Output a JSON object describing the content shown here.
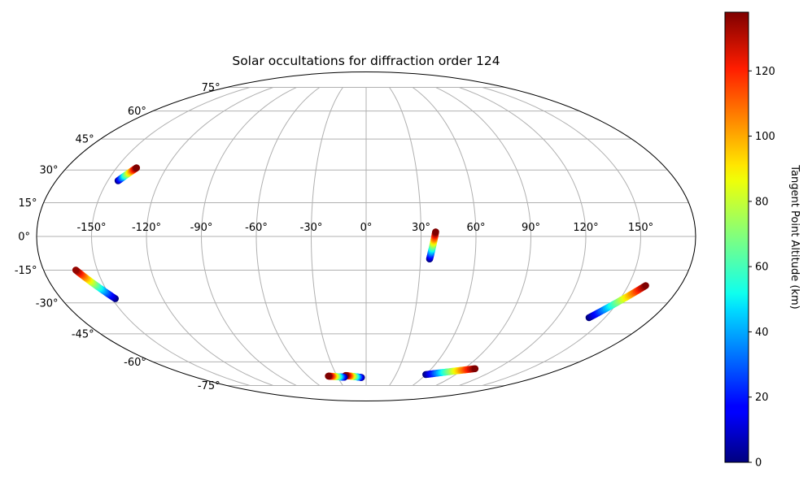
{
  "chart_data": {
    "type": "scatter",
    "projection": "mollweide",
    "title": "Solar occultations for diffraction order 124",
    "grid": true,
    "lon_ticks": [
      -150,
      -120,
      -90,
      -60,
      -30,
      0,
      30,
      60,
      90,
      120,
      150
    ],
    "lon_tick_labels": [
      "-150°",
      "-120°",
      "-90°",
      "-60°",
      "-30°",
      "0°",
      "30°",
      "60°",
      "90°",
      "120°",
      "150°"
    ],
    "lat_ticks": [
      -75,
      -60,
      -45,
      -30,
      -15,
      0,
      15,
      30,
      45,
      60,
      75
    ],
    "lat_tick_labels": [
      "-75°",
      "-60°",
      "-45°",
      "-30°",
      "-15°",
      "0°",
      "15°",
      "30°",
      "45°",
      "60°",
      "75°"
    ],
    "colorbar": {
      "label": "Tangent Point Altitude (km)",
      "range": [
        0,
        138
      ],
      "ticks": [
        0,
        20,
        40,
        60,
        80,
        100,
        120
      ],
      "tick_labels": [
        "0",
        "20",
        "40",
        "60",
        "80",
        "100",
        "120"
      ],
      "colormap": "jet"
    },
    "tracks": [
      {
        "start": {
          "lon": -144,
          "lat": 25,
          "alt": 0
        },
        "end": {
          "lon": -138,
          "lat": 31,
          "alt": 138
        }
      },
      {
        "start": {
          "lon": -148,
          "lat": -28,
          "alt": 0
        },
        "end": {
          "lon": -162,
          "lat": -15,
          "alt": 135
        }
      },
      {
        "start": {
          "lon": 35,
          "lat": -10,
          "alt": 0
        },
        "end": {
          "lon": 38,
          "lat": 2,
          "alt": 138
        }
      },
      {
        "start": {
          "lon": 140,
          "lat": -37,
          "alt": 0
        },
        "end": {
          "lon": 160,
          "lat": -22,
          "alt": 138
        }
      },
      {
        "start": {
          "lon": -5,
          "lat": -69.5,
          "alt": 0
        },
        "end": {
          "lon": -21,
          "lat": -68.2,
          "alt": 138
        }
      },
      {
        "start": {
          "lon": -23,
          "lat": -69.3,
          "alt": 0
        },
        "end": {
          "lon": -39,
          "lat": -68.6,
          "alt": 138
        }
      },
      {
        "start": {
          "lon": 60,
          "lat": -67.6,
          "alt": 0
        },
        "end": {
          "lon": 100,
          "lat": -64.0,
          "alt": 138
        }
      }
    ]
  }
}
